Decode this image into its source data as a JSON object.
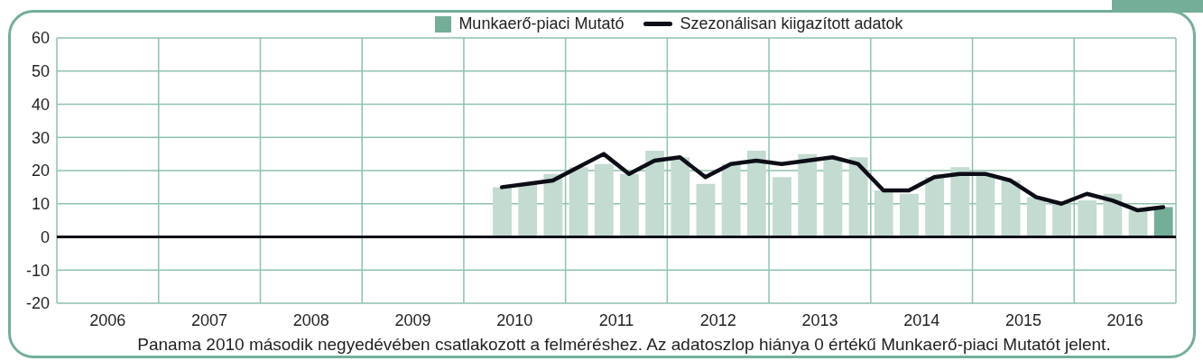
{
  "chart_data": {
    "type": "bar",
    "x": [
      2010.375,
      2010.625,
      2010.875,
      2011.125,
      2011.375,
      2011.625,
      2011.875,
      2012.125,
      2012.375,
      2012.625,
      2012.875,
      2013.125,
      2013.375,
      2013.625,
      2013.875,
      2014.125,
      2014.375,
      2014.625,
      2014.875,
      2015.125,
      2015.375,
      2015.625,
      2015.875,
      2016.125,
      2016.375,
      2016.625,
      2016.875
    ],
    "xlim": [
      2006,
      2017
    ],
    "xticks": [
      {
        "value": 2006,
        "label": null
      },
      {
        "value": 2006.5,
        "label": "2006"
      },
      {
        "value": 2007,
        "label": null
      },
      {
        "value": 2007.5,
        "label": "2007"
      },
      {
        "value": 2008,
        "label": null
      },
      {
        "value": 2008.5,
        "label": "2008"
      },
      {
        "value": 2009,
        "label": null
      },
      {
        "value": 2009.5,
        "label": "2009"
      },
      {
        "value": 2010,
        "label": null
      },
      {
        "value": 2010.5,
        "label": "2010"
      },
      {
        "value": 2011,
        "label": null
      },
      {
        "value": 2011.5,
        "label": "2011"
      },
      {
        "value": 2012,
        "label": null
      },
      {
        "value": 2012.5,
        "label": "2012"
      },
      {
        "value": 2013,
        "label": null
      },
      {
        "value": 2013.5,
        "label": "2013"
      },
      {
        "value": 2014,
        "label": null
      },
      {
        "value": 2014.5,
        "label": "2014"
      },
      {
        "value": 2015,
        "label": null
      },
      {
        "value": 2015.5,
        "label": "2015"
      },
      {
        "value": 2016,
        "label": null
      },
      {
        "value": 2016.5,
        "label": "2016"
      },
      {
        "value": 2017,
        "label": null
      }
    ],
    "ylim": [
      -20,
      60
    ],
    "yticks": [
      -20,
      -10,
      0,
      10,
      20,
      30,
      40,
      50,
      60
    ],
    "grid": true,
    "legend": "top",
    "series": [
      {
        "name": "Munkaerő-piaci Mutató",
        "color": "#74ae98",
        "colors": [
          "#c3dbd1",
          "#c3dbd1",
          "#c3dbd1",
          "#c3dbd1",
          "#c3dbd1",
          "#c3dbd1",
          "#c3dbd1",
          "#c3dbd1",
          "#c3dbd1",
          "#c3dbd1",
          "#c3dbd1",
          "#c3dbd1",
          "#c3dbd1",
          "#c3dbd1",
          "#c3dbd1",
          "#c3dbd1",
          "#c3dbd1",
          "#c3dbd1",
          "#c3dbd1",
          "#c3dbd1",
          "#c3dbd1",
          "#c3dbd1",
          "#c3dbd1",
          "#c3dbd1",
          "#c3dbd1",
          "#c3dbd1",
          "#74ae98"
        ],
        "values": [
          15,
          16,
          19,
          21,
          22,
          19,
          26,
          24,
          16,
          22,
          26,
          18,
          25,
          24,
          24,
          14,
          13,
          18,
          21,
          19,
          17,
          12,
          10,
          11,
          13,
          8,
          9
        ]
      },
      {
        "name": "Szezonálisan kiigazított adatok",
        "type": "line",
        "color": "#0d0d17",
        "values": [
          15,
          16,
          17,
          21,
          25,
          19,
          23,
          24,
          18,
          22,
          23,
          22,
          23,
          24,
          22,
          14,
          14,
          18,
          19,
          19,
          17,
          12,
          10,
          13,
          11,
          8,
          9
        ]
      }
    ],
    "ref_lines": [
      {
        "axis": "y",
        "value": 0,
        "color": "#0d0d17"
      }
    ],
    "annotations": [
      "Panama 2010 második negyedévében csatlakozott a felméréshez. Az adatoszlop hiánya 0 értékű Munkaerő-piaci Mutatót jelent."
    ]
  }
}
